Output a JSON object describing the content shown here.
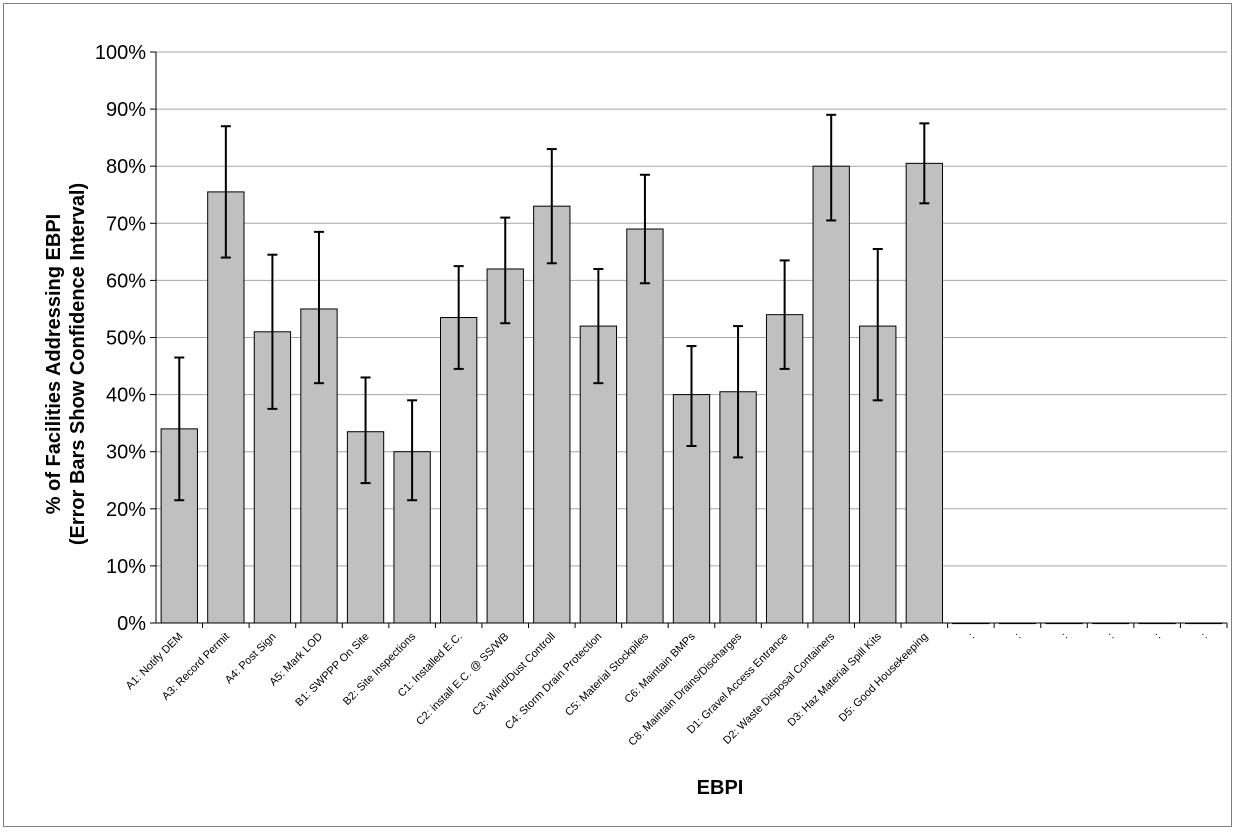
{
  "chart_data": {
    "type": "bar",
    "title": "",
    "xlabel": "EBPI",
    "ylabel_line1": "% of Facilities Addressing EBPI",
    "ylabel_line2": "(Error Bars Show Confidence Interval)",
    "ylim": [
      0,
      100
    ],
    "ytick_step": 10,
    "ytick_suffix": "%",
    "grid": true,
    "bar_color": "#c0c0c0",
    "gridline_color": "#a6a6a6",
    "categories": [
      "A1: Notify DEM",
      "A3: Record Permit",
      "A4: Post Sign",
      "A5: Mark LOD",
      "B1: SWPPP On Site",
      "B2: Site Inspections",
      "C1: Installed E.C.",
      "C2: install E.C. @ SS/WB",
      "C3: Wind/Dust Controll",
      "C4: Storm Drain Protection",
      "C5: Material Stockpiles",
      "C6: Maintain BMPs",
      "C8: Maintain Drains/Discharges",
      "D1: Gravel Access Entrance",
      "D2: Waste Disposal Containers",
      "D3: Haz Material Spill Kits",
      "D5: Good Housekeeping",
      ":",
      ":",
      ":",
      ":",
      ":",
      ":"
    ],
    "values": [
      34,
      75.5,
      51,
      55,
      33.5,
      30,
      53.5,
      62,
      73,
      52,
      69,
      40,
      40.5,
      54,
      80,
      52,
      80.5,
      0,
      0,
      0,
      0,
      0,
      0
    ],
    "error_low": [
      21.5,
      64,
      37.5,
      42,
      24.5,
      21.5,
      44.5,
      52.5,
      63,
      42,
      59.5,
      31,
      29,
      44.5,
      70.5,
      39,
      73.5,
      null,
      null,
      null,
      null,
      null,
      null
    ],
    "error_high": [
      46.5,
      87,
      64.5,
      68.5,
      43,
      39,
      62.5,
      71,
      83,
      62,
      78.5,
      48.5,
      52,
      63.5,
      89,
      65.5,
      87.5,
      null,
      null,
      null,
      null,
      null,
      null
    ]
  }
}
